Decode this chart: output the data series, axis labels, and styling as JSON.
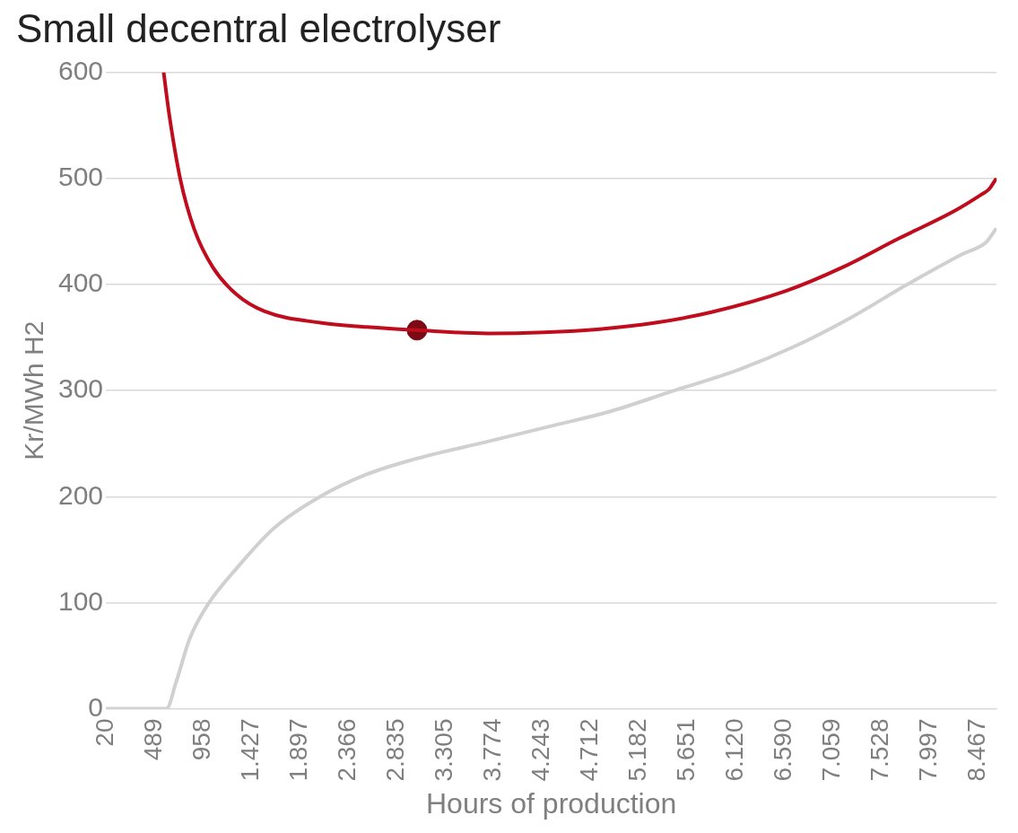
{
  "chart_data": {
    "type": "line",
    "title": "Small decentral electrolyser",
    "xlabel": "Hours of production",
    "ylabel": "Kr/MWh H2",
    "xlim": [
      20,
      8650
    ],
    "ylim": [
      0,
      600
    ],
    "yticks": [
      0,
      100,
      200,
      300,
      400,
      500,
      600
    ],
    "xticks": [
      20,
      489,
      958,
      {
        "value": 1427,
        "label": "1.427"
      },
      {
        "value": 1897,
        "label": "1.897"
      },
      {
        "value": 2366,
        "label": "2.366"
      },
      {
        "value": 2835,
        "label": "2.835"
      },
      {
        "value": 3305,
        "label": "3.305"
      },
      {
        "value": 3774,
        "label": "3.774"
      },
      {
        "value": 4243,
        "label": "4.243"
      },
      {
        "value": 4712,
        "label": "4.712"
      },
      {
        "value": 5182,
        "label": "5.182"
      },
      {
        "value": 5651,
        "label": "5.651"
      },
      {
        "value": 6120,
        "label": "6.120"
      },
      {
        "value": 6590,
        "label": "6.590"
      },
      {
        "value": 7059,
        "label": "7.059"
      },
      {
        "value": 7528,
        "label": "7.528"
      },
      {
        "value": 7997,
        "label": "7.997"
      },
      {
        "value": 8467,
        "label": "8.467"
      }
    ],
    "grid": "y",
    "legend": false,
    "line_style": "solid",
    "series": [
      {
        "color": "#d0d0d0",
        "x": [
          20,
          607,
          697,
          832,
          1013,
          1283,
          1645,
          2096,
          2547,
          2998,
          3720,
          4352,
          4893,
          5525,
          6157,
          6699,
          7240,
          7782,
          8323,
          8549,
          8639
        ],
        "values": [
          0,
          0,
          24,
          66,
          99,
          132,
          170,
          200,
          221,
          235,
          252,
          267,
          280,
          300,
          320,
          342,
          369,
          400,
          429,
          440,
          452
        ]
      },
      {
        "color": "#c00d1e",
        "x": [
          580,
          634,
          742,
          877,
          1058,
          1283,
          1554,
          2096,
          2547,
          3034,
          3720,
          4262,
          4803,
          5345,
          5887,
          6608,
          7150,
          7691,
          8233,
          8503,
          8576,
          8639
        ],
        "values": [
          600,
          560,
          499,
          452,
          416,
          391,
          375,
          364,
          360,
          357,
          354,
          355,
          358,
          364,
          374,
          394,
          416,
          443,
          469,
          485,
          490,
          499
        ]
      },
      {
        "type": "scatter",
        "color": "#7b0a14",
        "marker": "circle",
        "x": [
          3034
        ],
        "values": [
          357
        ]
      }
    ]
  }
}
